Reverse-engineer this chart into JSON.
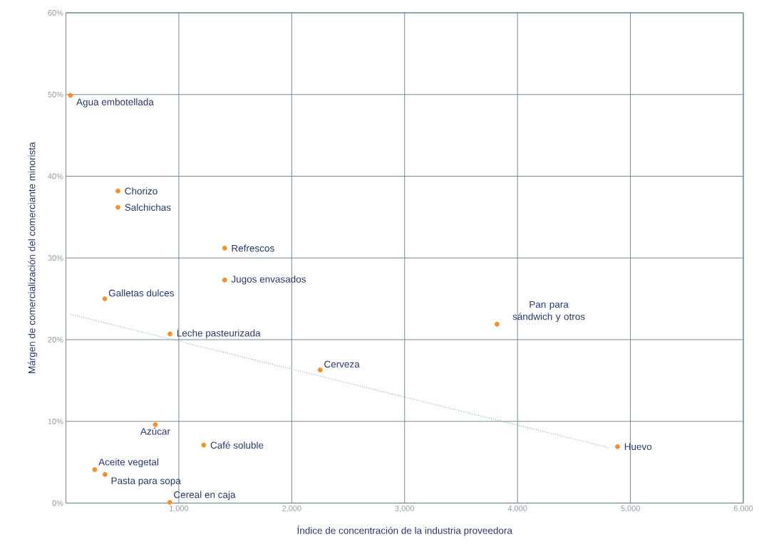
{
  "chart_data": {
    "type": "scatter",
    "xlabel": "Índice de concentración de la industria proveedora",
    "ylabel": "Márgen de comercialización del comerciante minorista",
    "xlim": [
      0,
      6000
    ],
    "ylim": [
      0,
      60
    ],
    "xticks": [
      {
        "value": 1000,
        "label": "1,000"
      },
      {
        "value": 2000,
        "label": "2,000"
      },
      {
        "value": 3000,
        "label": "3,000"
      },
      {
        "value": 4000,
        "label": "4,000"
      },
      {
        "value": 5000,
        "label": "5,000"
      },
      {
        "value": 6000,
        "label": "6,000"
      }
    ],
    "yticks": [
      {
        "value": 0,
        "label": "0%"
      },
      {
        "value": 10,
        "label": "10%"
      },
      {
        "value": 20,
        "label": "20%"
      },
      {
        "value": 30,
        "label": "30%"
      },
      {
        "value": 40,
        "label": "40%"
      },
      {
        "value": 50,
        "label": "50%"
      },
      {
        "value": 60,
        "label": "60%"
      }
    ],
    "grid": true,
    "series": [
      {
        "color": "#f0922b",
        "marker": "circle",
        "x": [
          40,
          461,
          461,
          1406,
          1406,
          344,
          922,
          3818,
          2252,
          792,
          1220,
          255,
          346,
          920,
          4886
        ],
        "values": [
          49.9,
          38.2,
          36.2,
          31.2,
          27.3,
          25.0,
          20.7,
          21.9,
          16.3,
          9.6,
          7.1,
          4.1,
          3.5,
          0.1,
          6.9
        ]
      },
      {
        "type": "line",
        "color": "#7fb0b0",
        "line_style": "dotted",
        "marker": "none",
        "x": [
          42,
          4803
        ],
        "values": [
          23.1,
          6.8
        ]
      }
    ],
    "annotations": [
      {
        "text": "Agua embotellada",
        "x": 40,
        "y": 49.9
      },
      {
        "text": "Chorizo",
        "x": 461,
        "y": 38.2
      },
      {
        "text": "Salchichas",
        "x": 461,
        "y": 36.2
      },
      {
        "text": "Refrescos",
        "x": 1406,
        "y": 31.2
      },
      {
        "text": "Jugos envasados",
        "x": 1406,
        "y": 27.3
      },
      {
        "text": "Galletas dulces",
        "x": 344,
        "y": 25.0
      },
      {
        "text": "Leche pasteurizada",
        "x": 922,
        "y": 20.7
      },
      {
        "text": "Pan para sándwich y otros",
        "x": 3818,
        "y": 21.9
      },
      {
        "text": "Cerveza",
        "x": 2252,
        "y": 16.3
      },
      {
        "text": "Azúcar",
        "x": 792,
        "y": 9.6
      },
      {
        "text": "Café soluble",
        "x": 1220,
        "y": 7.1
      },
      {
        "text": "Aceite vegetal",
        "x": 255,
        "y": 4.1
      },
      {
        "text": "Pasta para sopa",
        "x": 346,
        "y": 3.5
      },
      {
        "text": "Cereal en caja",
        "x": 920,
        "y": 0.1
      },
      {
        "text": "Huevo",
        "x": 4886,
        "y": 6.9
      }
    ]
  }
}
